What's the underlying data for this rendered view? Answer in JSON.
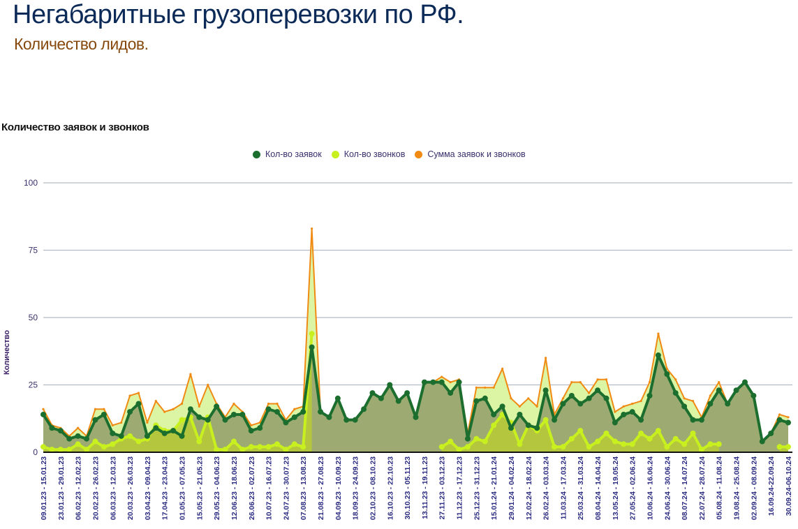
{
  "header": {
    "title": "Негабаритные грузоперевозки по РФ.",
    "subtitle": "Количество лидов."
  },
  "chart_data": {
    "type": "area",
    "title": "Количество заявок и звонков",
    "xlabel": "",
    "ylabel": "Количество",
    "ylim": [
      0,
      100
    ],
    "yticks": [
      "0",
      "25",
      "50",
      "75",
      "100"
    ],
    "grid": true,
    "legend_position": "top-center",
    "colors": {
      "requests": "#1b6e2e",
      "calls": "#c8f01e",
      "sum": "#f08a12"
    },
    "x_labels_every_second_point": [
      "09.01.23 - 15.01.23",
      "23.01.23 - 29.01.23",
      "06.02.23 - 12.02.23",
      "20.02.23 - 26.02.23",
      "06.03.23 - 12.03.23",
      "20.03.23 - 26.03.23",
      "03.04.23 - 09.04.23",
      "17.04.23 - 23.04.23",
      "01.05.23 - 07.05.23",
      "15.05.23 - 21.05.23",
      "29.05.23 - 04.06.23",
      "12.06.23 - 18.06.23",
      "26.06.23 - 02.07.23",
      "10.07.23 - 16.07.23",
      "24.07.23 - 30.07.23",
      "07.08.23 - 13.08.23",
      "21.08.23 - 27.08.23",
      "04.09.23 - 10.09.23",
      "18.09.23 - 24.09.23",
      "02.10.23 - 08.10.23",
      "16.10.23 - 22.10.23",
      "30.10.23 - 05.11.23",
      "13.11.23 - 19.11.23",
      "27.11.23 - 03.12.23",
      "11.12.23 - 17.12.23",
      "25.12.23 - 31.12.23",
      "15.01.24 - 21.01.24",
      "29.01.24 - 04.02.24",
      "12.02.24 - 18.02.24",
      "26.02.24 - 03.03.24",
      "11.03.24 - 17.03.24",
      "25.03.24 - 31.03.24",
      "08.04.24 - 14.04.24",
      "13.05.24 - 19.05.24",
      "27.05.24 - 02.06.24",
      "10.06.24 - 16.06.24",
      "24.06.24 - 30.06.24",
      "08.07.24 - 14.07.24",
      "22.07.24 - 28.07.24",
      "05.08.24 - 11.08.24",
      "19.08.24 - 25.08.24",
      "02.09.24 - 08.09.24",
      "16.09.24-22.09.24",
      "30.09.24-06.10.24"
    ],
    "series": [
      {
        "name": "Кол-во заявок",
        "key": "requests",
        "values": [
          14,
          9,
          8,
          5,
          6,
          5,
          12,
          14,
          7,
          6,
          15,
          18,
          6,
          9,
          7,
          8,
          6,
          16,
          13,
          12,
          17,
          12,
          14,
          14,
          8,
          9,
          16,
          15,
          11,
          13,
          15,
          39,
          15,
          13,
          20,
          12,
          12,
          16,
          22,
          20,
          25,
          19,
          22,
          13,
          26,
          26,
          26,
          22,
          26,
          5,
          19,
          20,
          14,
          17,
          9,
          14,
          10,
          9,
          23,
          12,
          18,
          21,
          18,
          20,
          23,
          20,
          11,
          14,
          15,
          12,
          21,
          36,
          29,
          22,
          17,
          12,
          12,
          18,
          23,
          18,
          23,
          26,
          21,
          4,
          7,
          12,
          11
        ]
      },
      {
        "name": "Кол-во звонков",
        "key": "calls",
        "values": [
          2,
          1,
          1,
          1,
          3,
          1,
          4,
          2,
          3,
          5,
          6,
          4,
          5,
          10,
          8,
          8,
          12,
          13,
          4,
          13,
          1,
          1,
          4,
          1,
          2,
          2,
          2,
          3,
          1,
          3,
          2,
          44,
          null,
          null,
          null,
          null,
          null,
          null,
          null,
          null,
          null,
          null,
          null,
          null,
          null,
          null,
          2,
          4,
          1,
          2,
          5,
          4,
          10,
          14,
          11,
          3,
          10,
          8,
          12,
          2,
          2,
          5,
          8,
          2,
          4,
          7,
          4,
          3,
          3,
          7,
          5,
          8,
          2,
          5,
          3,
          7,
          1,
          3,
          3,
          null,
          null,
          null,
          null,
          null,
          null,
          2,
          2
        ]
      },
      {
        "name": "Сумма заявок и звонков",
        "key": "sum",
        "values": [
          16,
          10,
          9,
          6,
          9,
          6,
          16,
          16,
          10,
          11,
          21,
          22,
          11,
          19,
          15,
          16,
          18,
          29,
          17,
          25,
          18,
          13,
          18,
          15,
          10,
          11,
          18,
          18,
          12,
          16,
          17,
          83,
          15,
          13,
          20,
          12,
          12,
          16,
          22,
          20,
          25,
          19,
          22,
          13,
          26,
          26,
          28,
          26,
          27,
          7,
          24,
          24,
          24,
          31,
          20,
          17,
          20,
          17,
          35,
          14,
          20,
          26,
          26,
          22,
          27,
          27,
          15,
          17,
          18,
          19,
          26,
          44,
          31,
          27,
          20,
          19,
          13,
          21,
          26,
          18,
          23,
          26,
          21,
          4,
          7,
          14,
          13
        ]
      }
    ]
  }
}
